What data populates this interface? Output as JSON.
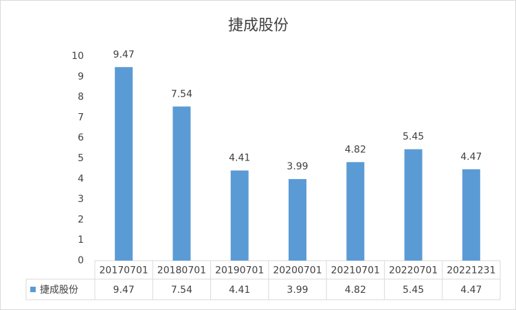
{
  "chart_data": {
    "type": "bar",
    "title": "捷成股份",
    "categories": [
      "20170701",
      "20180701",
      "20190701",
      "20200701",
      "20210701",
      "20220701",
      "20221231"
    ],
    "series": [
      {
        "name": "捷成股份",
        "color": "#5b9bd5",
        "values": [
          9.47,
          7.54,
          4.41,
          3.99,
          4.82,
          5.45,
          4.47
        ]
      }
    ],
    "ylim": [
      0,
      10
    ],
    "yticks": [
      0,
      1,
      2,
      3,
      4,
      5,
      6,
      7,
      8,
      9,
      10
    ],
    "grid": false
  }
}
